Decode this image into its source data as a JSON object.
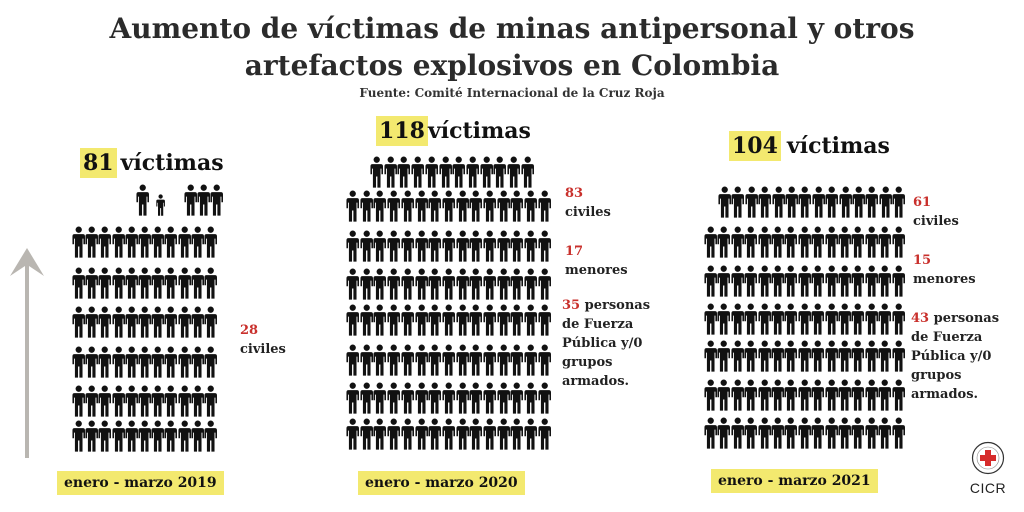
{
  "title": {
    "line1": "Aumento de víctimas de minas antipersonal y otros",
    "line2": "artefactos explosivos en  Colombia"
  },
  "source": "Fuente: Comité Internacional de la Cruz Roja",
  "panels": [
    {
      "total_number": "81",
      "total_label": "víctimas",
      "period": "enero - marzo 2019",
      "stats": [
        {
          "number": "28",
          "label": "civiles"
        }
      ]
    },
    {
      "total_number": "118",
      "total_label": "víctimas",
      "period": "enero - marzo 2020",
      "stats": [
        {
          "number": "83",
          "label": "civiles"
        },
        {
          "number": "17",
          "label": "menores"
        },
        {
          "number": "35",
          "label": "personas de Fuerza Pública y/0 grupos armados."
        }
      ]
    },
    {
      "total_number": "104",
      "total_label": "víctimas",
      "period": "enero - marzo 2021",
      "stats": [
        {
          "number": "61",
          "label": "civiles"
        },
        {
          "number": "15",
          "label": "menores"
        },
        {
          "number": "43",
          "label": "personas de Fuerza Pública y/0 grupos armados."
        }
      ]
    }
  ],
  "logo": {
    "label": "CICR",
    "icon": "red-cross-emblem-icon"
  },
  "colors": {
    "highlight": "#f3e96f",
    "number_red": "#c9302c",
    "figure": "#111111"
  }
}
